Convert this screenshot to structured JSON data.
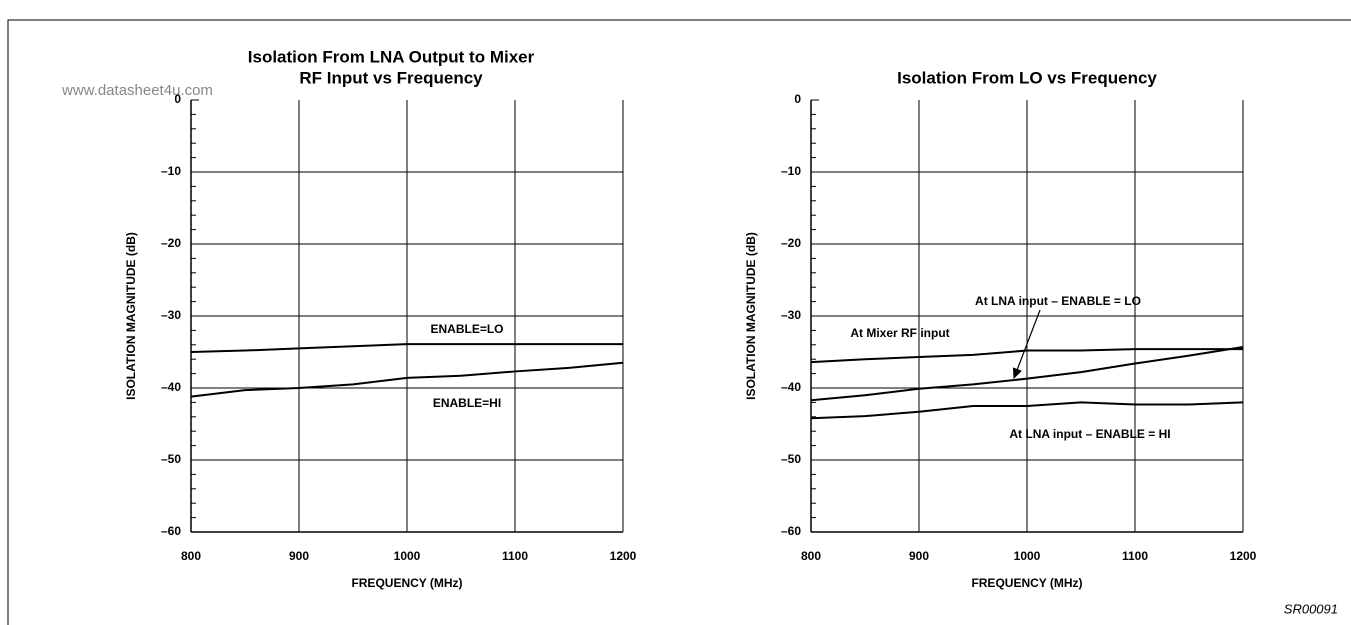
{
  "source": "www.datasheet4u.com",
  "figure_id": "SR00091",
  "chart_data": [
    {
      "type": "line",
      "title": [
        "Isolation From LNA Output to Mixer",
        "RF Input vs Frequency"
      ],
      "x_label": "FREQUENCY (MHz)",
      "y_label": "ISOLATION MAGNITUDE (dB)",
      "x": [
        800,
        850,
        900,
        950,
        1000,
        1050,
        1100,
        1150,
        1200
      ],
      "series": [
        {
          "name": "ENABLE=LO",
          "color": "#000000",
          "values": [
            -35,
            -34.8,
            -34.5,
            -34.2,
            -33.9,
            -33.9,
            -33.9,
            -33.9,
            -33.9
          ]
        },
        {
          "name": "ENABLE=HI",
          "color": "#000000",
          "values": [
            -41.2,
            -40.3,
            -40,
            -39.5,
            -38.6,
            -38.3,
            -37.7,
            -37.2,
            -36.5
          ]
        }
      ],
      "xlim": [
        800,
        1200
      ],
      "xticks": [
        800,
        900,
        1000,
        1100,
        1200
      ],
      "ylim": [
        -60,
        0
      ],
      "yticks": [
        {
          "value": -60,
          "label": "–60"
        },
        {
          "value": -50,
          "label": "–50"
        },
        {
          "value": -40,
          "label": "–40"
        },
        {
          "value": -30,
          "label": "–30"
        },
        {
          "value": -20,
          "label": "–20"
        },
        {
          "value": -10,
          "label": "–10"
        },
        0
      ],
      "yminorticks": [
        -58,
        -56,
        -54,
        -52,
        -48,
        -46,
        -44,
        -42,
        -38,
        -36,
        -34,
        -32,
        -28,
        -26,
        -24,
        -22,
        -18,
        -16,
        -14,
        -12,
        -8,
        -6,
        -4,
        -2
      ],
      "grid": true
    },
    {
      "type": "line",
      "title": [
        "Isolation From LO vs Frequency"
      ],
      "x_label": "FREQUENCY (MHz)",
      "y_label": "ISOLATION MAGNITUDE (dB)",
      "x": [
        800,
        850,
        900,
        950,
        1000,
        1050,
        1100,
        1150,
        1200
      ],
      "series": [
        {
          "name": "At Mixer RF input",
          "color": "#000000",
          "values": [
            -36.4,
            -36,
            -35.7,
            -35.4,
            -34.8,
            -34.8,
            -34.6,
            -34.6,
            -34.6
          ]
        },
        {
          "name": "At LNA input – ENABLE = LO",
          "color": "#000000",
          "values": [
            -41.7,
            -41,
            -40.1,
            -39.5,
            -38.7,
            -37.8,
            -36.6,
            -35.5,
            -34.3
          ]
        },
        {
          "name": "At LNA input – ENABLE = HI",
          "color": "#000000",
          "values": [
            -44.2,
            -43.9,
            -43.3,
            -42.5,
            -42.5,
            -42,
            -42.3,
            -42.3,
            -42
          ]
        }
      ],
      "xlim": [
        800,
        1200
      ],
      "xticks": [
        800,
        900,
        1000,
        1100,
        1200
      ],
      "ylim": [
        -60,
        0
      ],
      "yticks": [
        {
          "value": -60,
          "label": "–60"
        },
        {
          "value": -50,
          "label": "–50"
        },
        {
          "value": -40,
          "label": "–40"
        },
        {
          "value": -30,
          "label": "–30"
        },
        {
          "value": -20,
          "label": "–20"
        },
        {
          "value": -10,
          "label": "–10"
        },
        0
      ],
      "yminorticks": [
        -58,
        -56,
        -54,
        -52,
        -48,
        -46,
        -44,
        -42,
        -38,
        -36,
        -34,
        -32,
        -28,
        -26,
        -24,
        -22,
        -18,
        -16,
        -14,
        -12,
        -8,
        -6,
        -4,
        -2
      ],
      "grid": true
    }
  ]
}
